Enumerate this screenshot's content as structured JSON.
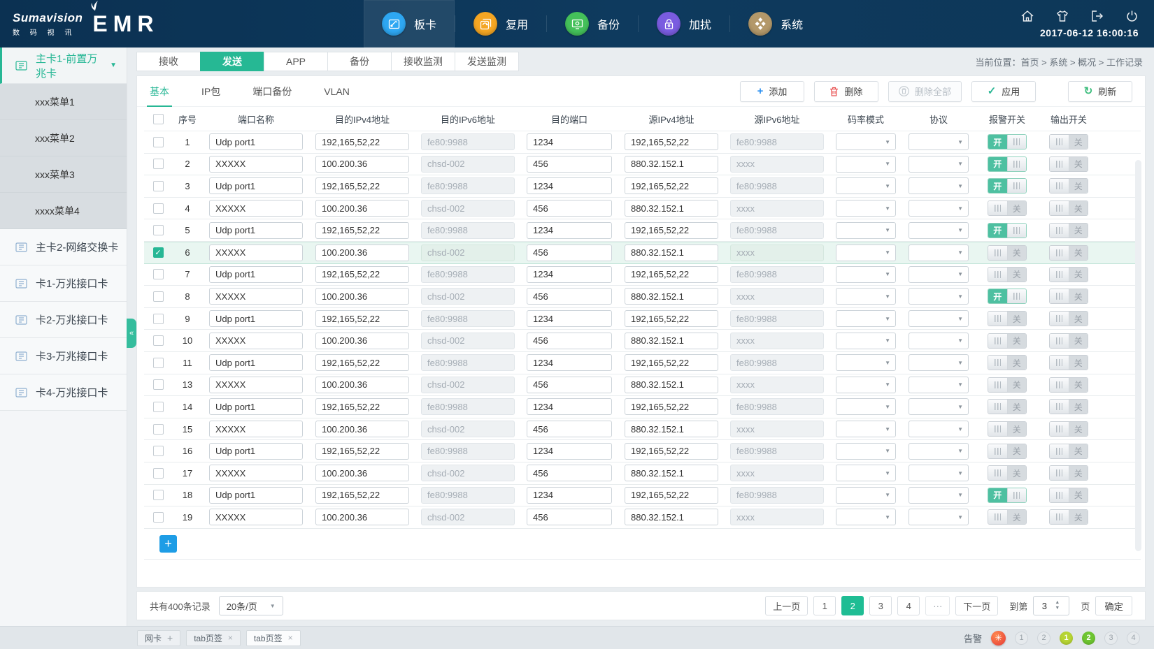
{
  "header": {
    "logo": {
      "brand": "Sumavision",
      "sub": "数 码 视 讯",
      "product": "EMR"
    },
    "nav": [
      {
        "label": "板卡",
        "icon": "board-icon",
        "color": "#2ea7f2",
        "active": true
      },
      {
        "label": "复用",
        "icon": "mux-icon",
        "color": "#f5a623",
        "active": false
      },
      {
        "label": "备份",
        "icon": "backup-icon",
        "color": "#44c05a",
        "active": false
      },
      {
        "label": "加扰",
        "icon": "scramble-icon",
        "color": "#7a5ce0",
        "active": false
      },
      {
        "label": "系统",
        "icon": "system-icon",
        "color": "#b3986a",
        "active": false
      }
    ],
    "datetime": "2017-06-12  16:00:16"
  },
  "sidebar": {
    "items": [
      {
        "label": "主卡1-前置万兆卡",
        "active": true,
        "expanded": true,
        "children": [
          "xxx菜单1",
          "xxx菜单2",
          "xxx菜单3",
          "xxxx菜单4"
        ]
      },
      {
        "label": "主卡2-网络交换卡",
        "active": false
      },
      {
        "label": "卡1-万兆接口卡",
        "active": false
      },
      {
        "label": "卡2-万兆接口卡",
        "active": false
      },
      {
        "label": "卡3-万兆接口卡",
        "active": false
      },
      {
        "label": "卡4-万兆接口卡",
        "active": false
      }
    ]
  },
  "breadcrumb": "当前位置：首页 > 系统 > 概况 > 工作记录",
  "tabs": {
    "items": [
      "接收",
      "发送",
      "APP",
      "备份",
      "接收监测",
      "发送监测"
    ],
    "active": "发送"
  },
  "subtabs": {
    "items": [
      "基本",
      "IP包",
      "端口备份",
      "VLAN"
    ],
    "active": "基本"
  },
  "toolbar": {
    "add": "添加",
    "delete": "删除",
    "delete_all": "删除全部",
    "apply": "应用",
    "refresh": "刷新"
  },
  "table": {
    "columns": [
      "序号",
      "端口名称",
      "目的IPv4地址",
      "目的IPv6地址",
      "目的端口",
      "源IPv4地址",
      "源IPv6地址",
      "码率模式",
      "协议",
      "报警开关",
      "输出开关"
    ],
    "toggle_on": "开",
    "toggle_off": "关",
    "rows": [
      {
        "no": "1",
        "name": "Udp port1",
        "dst_ipv4": "192,165,52,22",
        "dst_ipv6": "fe80:9988",
        "dst_port": "1234",
        "src_ipv4": "192,165,52,22",
        "src_ipv6": "fe80:9988",
        "rate_mode": "",
        "protocol": "",
        "alarm_on": true,
        "output_on": false,
        "checked": false
      },
      {
        "no": "2",
        "name": "XXXXX",
        "dst_ipv4": "100.200.36",
        "dst_ipv6": "chsd-002",
        "dst_port": "456",
        "src_ipv4": "880.32.152.1",
        "src_ipv6": "xxxx",
        "rate_mode": "",
        "protocol": "",
        "alarm_on": true,
        "output_on": false,
        "checked": false
      },
      {
        "no": "3",
        "name": "Udp port1",
        "dst_ipv4": "192,165,52,22",
        "dst_ipv6": "fe80:9988",
        "dst_port": "1234",
        "src_ipv4": "192,165,52,22",
        "src_ipv6": "fe80:9988",
        "rate_mode": "",
        "protocol": "",
        "alarm_on": true,
        "output_on": false,
        "checked": false
      },
      {
        "no": "4",
        "name": "XXXXX",
        "dst_ipv4": "100.200.36",
        "dst_ipv6": "chsd-002",
        "dst_port": "456",
        "src_ipv4": "880.32.152.1",
        "src_ipv6": "xxxx",
        "rate_mode": "",
        "protocol": "",
        "alarm_on": false,
        "output_on": false,
        "checked": false
      },
      {
        "no": "5",
        "name": "Udp port1",
        "dst_ipv4": "192,165,52,22",
        "dst_ipv6": "fe80:9988",
        "dst_port": "1234",
        "src_ipv4": "192,165,52,22",
        "src_ipv6": "fe80:9988",
        "rate_mode": "",
        "protocol": "",
        "alarm_on": true,
        "output_on": false,
        "checked": false
      },
      {
        "no": "6",
        "name": "XXXXX",
        "dst_ipv4": "100.200.36",
        "dst_ipv6": "chsd-002",
        "dst_port": "456",
        "src_ipv4": "880.32.152.1",
        "src_ipv6": "xxxx",
        "rate_mode": "",
        "protocol": "",
        "alarm_on": false,
        "output_on": false,
        "checked": true
      },
      {
        "no": "7",
        "name": "Udp port1",
        "dst_ipv4": "192,165,52,22",
        "dst_ipv6": "fe80:9988",
        "dst_port": "1234",
        "src_ipv4": "192,165,52,22",
        "src_ipv6": "fe80:9988",
        "rate_mode": "",
        "protocol": "",
        "alarm_on": false,
        "output_on": false,
        "checked": false
      },
      {
        "no": "8",
        "name": "XXXXX",
        "dst_ipv4": "100.200.36",
        "dst_ipv6": "chsd-002",
        "dst_port": "456",
        "src_ipv4": "880.32.152.1",
        "src_ipv6": "xxxx",
        "rate_mode": "",
        "protocol": "",
        "alarm_on": true,
        "output_on": false,
        "checked": false
      },
      {
        "no": "9",
        "name": "Udp port1",
        "dst_ipv4": "192,165,52,22",
        "dst_ipv6": "fe80:9988",
        "dst_port": "1234",
        "src_ipv4": "192,165,52,22",
        "src_ipv6": "fe80:9988",
        "rate_mode": "",
        "protocol": "",
        "alarm_on": false,
        "output_on": false,
        "checked": false
      },
      {
        "no": "10",
        "name": "XXXXX",
        "dst_ipv4": "100.200.36",
        "dst_ipv6": "chsd-002",
        "dst_port": "456",
        "src_ipv4": "880.32.152.1",
        "src_ipv6": "xxxx",
        "rate_mode": "",
        "protocol": "",
        "alarm_on": false,
        "output_on": false,
        "checked": false
      },
      {
        "no": "11",
        "name": "Udp port1",
        "dst_ipv4": "192,165,52,22",
        "dst_ipv6": "fe80:9988",
        "dst_port": "1234",
        "src_ipv4": "192,165,52,22",
        "src_ipv6": "fe80:9988",
        "rate_mode": "",
        "protocol": "",
        "alarm_on": false,
        "output_on": false,
        "checked": false
      },
      {
        "no": "13",
        "name": "XXXXX",
        "dst_ipv4": "100.200.36",
        "dst_ipv6": "chsd-002",
        "dst_port": "456",
        "src_ipv4": "880.32.152.1",
        "src_ipv6": "xxxx",
        "rate_mode": "",
        "protocol": "",
        "alarm_on": false,
        "output_on": false,
        "checked": false
      },
      {
        "no": "14",
        "name": "Udp port1",
        "dst_ipv4": "192,165,52,22",
        "dst_ipv6": "fe80:9988",
        "dst_port": "1234",
        "src_ipv4": "192,165,52,22",
        "src_ipv6": "fe80:9988",
        "rate_mode": "",
        "protocol": "",
        "alarm_on": false,
        "output_on": false,
        "checked": false
      },
      {
        "no": "15",
        "name": "XXXXX",
        "dst_ipv4": "100.200.36",
        "dst_ipv6": "chsd-002",
        "dst_port": "456",
        "src_ipv4": "880.32.152.1",
        "src_ipv6": "xxxx",
        "rate_mode": "",
        "protocol": "",
        "alarm_on": false,
        "output_on": false,
        "checked": false
      },
      {
        "no": "16",
        "name": "Udp port1",
        "dst_ipv4": "192,165,52,22",
        "dst_ipv6": "fe80:9988",
        "dst_port": "1234",
        "src_ipv4": "192,165,52,22",
        "src_ipv6": "fe80:9988",
        "rate_mode": "",
        "protocol": "",
        "alarm_on": false,
        "output_on": false,
        "checked": false
      },
      {
        "no": "17",
        "name": "XXXXX",
        "dst_ipv4": "100.200.36",
        "dst_ipv6": "chsd-002",
        "dst_port": "456",
        "src_ipv4": "880.32.152.1",
        "src_ipv6": "xxxx",
        "rate_mode": "",
        "protocol": "",
        "alarm_on": false,
        "output_on": false,
        "checked": false
      },
      {
        "no": "18",
        "name": "Udp port1",
        "dst_ipv4": "192,165,52,22",
        "dst_ipv6": "fe80:9988",
        "dst_port": "1234",
        "src_ipv4": "192,165,52,22",
        "src_ipv6": "fe80:9988",
        "rate_mode": "",
        "protocol": "",
        "alarm_on": true,
        "output_on": false,
        "checked": false
      },
      {
        "no": "19",
        "name": "XXXXX",
        "dst_ipv4": "100.200.36",
        "dst_ipv6": "chsd-002",
        "dst_port": "456",
        "src_ipv4": "880.32.152.1",
        "src_ipv6": "xxxx",
        "rate_mode": "",
        "protocol": "",
        "alarm_on": false,
        "output_on": false,
        "checked": false
      }
    ]
  },
  "footer": {
    "total": "共有400条记录",
    "per_page": "20条/页",
    "pages": [
      "上一页",
      "1",
      "2",
      "3",
      "4",
      "···",
      "下一页"
    ],
    "active_page": "2",
    "goto_label": "到第",
    "goto_value": "3",
    "page_unit": "页",
    "confirm": "确定"
  },
  "taskbar": {
    "tabs": [
      {
        "label": "网卡",
        "action": "+",
        "active": false
      },
      {
        "label": "tab页签",
        "action": "×",
        "active": false
      },
      {
        "label": "tab页签",
        "action": "×",
        "active": true
      }
    ],
    "alarm_label": "告警",
    "badges": [
      {
        "n": "1",
        "color": ""
      },
      {
        "n": "2",
        "color": ""
      },
      {
        "n": "1",
        "color": "#b6d433"
      },
      {
        "n": "2",
        "color": "#6ec531"
      },
      {
        "n": "3",
        "color": ""
      },
      {
        "n": "4",
        "color": ""
      }
    ]
  },
  "colors": {
    "accent_green": "#27b795",
    "header_navy": "#0e3a5e",
    "add_blue": "#1e9de6",
    "delete_red": "#e85050"
  }
}
